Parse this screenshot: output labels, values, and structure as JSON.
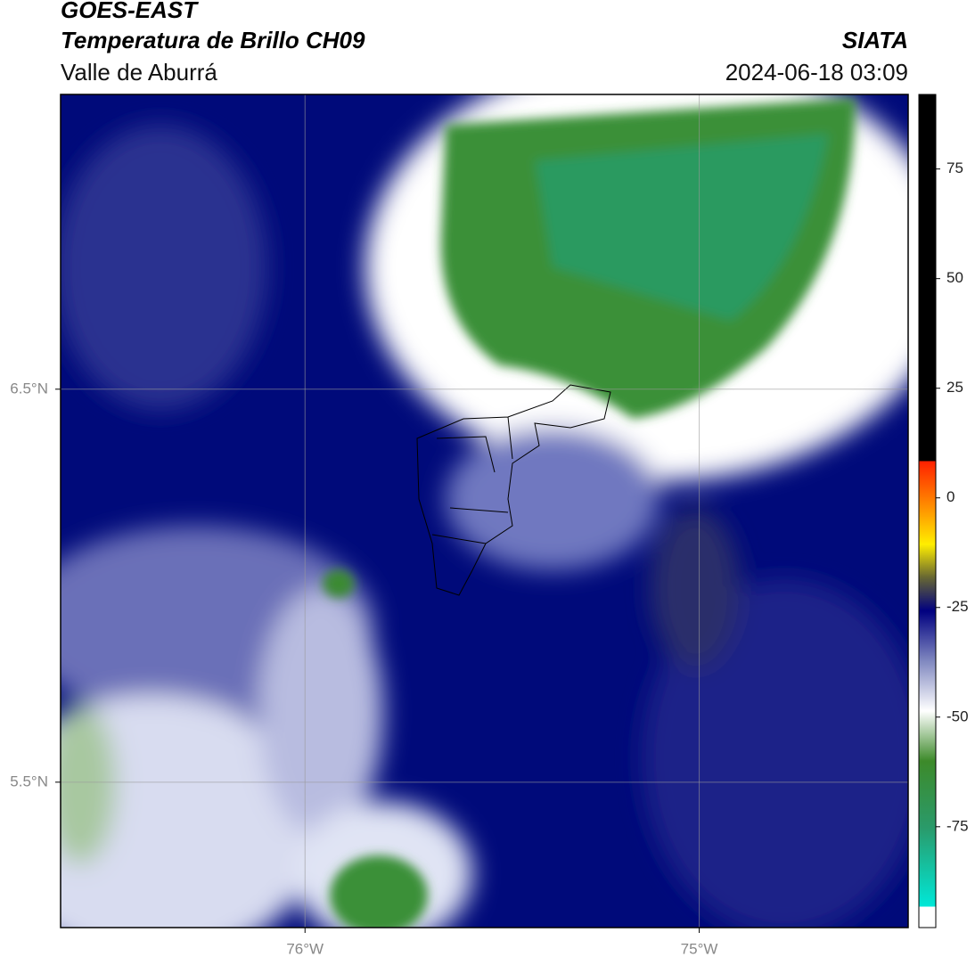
{
  "header": {
    "title": "GOES-EAST",
    "subtitle": "Temperatura de Brillo CH09",
    "region": "Valle de Aburrá",
    "source": "SIATA",
    "datetime": "2024-06-18 03:09"
  },
  "map": {
    "lonlim": [
      -76.62,
      -74.47
    ],
    "latlim": [
      5.13,
      7.25
    ],
    "lonticks": [
      {
        "value": -76,
        "label": "76°W"
      },
      {
        "value": -75,
        "label": "75°W"
      }
    ],
    "latticks": [
      {
        "value": 6.5,
        "label": "6.5°N"
      },
      {
        "value": 5.5,
        "label": "5.5°N"
      }
    ]
  },
  "colorbar": {
    "lim": [
      -98,
      92
    ],
    "ticks": [
      75,
      50,
      25,
      0,
      -25,
      -50,
      -75
    ]
  }
}
